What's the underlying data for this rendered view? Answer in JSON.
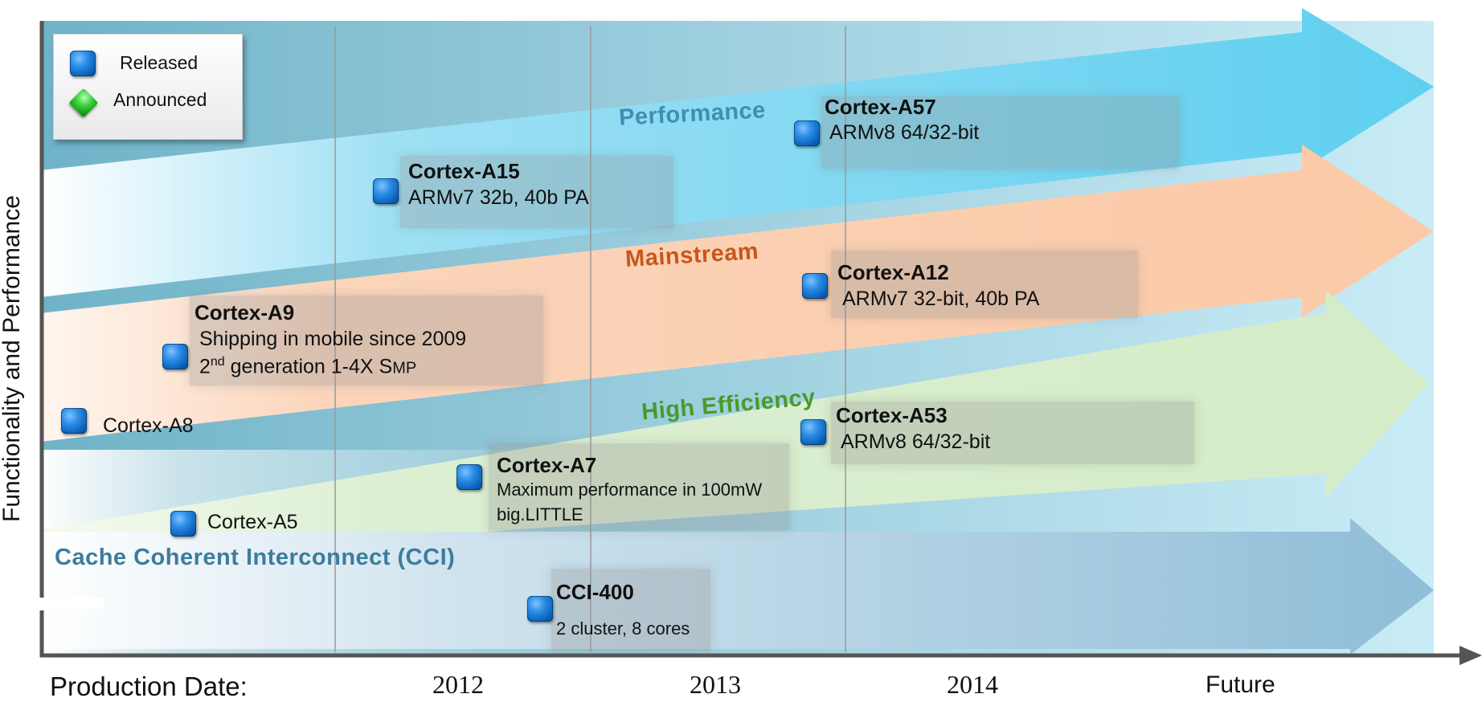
{
  "legend": {
    "released_label": "Released",
    "announced_label": "Announced"
  },
  "axis": {
    "y_title": "Functionality and Performance",
    "x_title": "Production Date:",
    "years": [
      "2012",
      "2013",
      "2014",
      "Future"
    ]
  },
  "bands": {
    "performance": "Performance",
    "mainstream": "Mainstream",
    "high_efficiency": "High Efficiency",
    "cci": "Cache Coherent Interconnect (CCI)"
  },
  "cores": {
    "a8": {
      "name": "Cortex-A8"
    },
    "a5": {
      "name": "Cortex-A5"
    },
    "a9": {
      "name": "Cortex-A9",
      "line1": "Shipping in mobile since 2009",
      "line2_prefix": "2",
      "line2_sup": "nd",
      "line2_rest": " generation 1-4X S",
      "line2_small": "MP"
    },
    "a15": {
      "name": "Cortex-A15",
      "desc": "ARMv7 32b, 40b PA"
    },
    "a7": {
      "name": "Cortex-A7",
      "line1": "Maximum performance in 100mW",
      "line2": "big.LITTLE"
    },
    "a57": {
      "name": "Cortex-A57",
      "desc": "ARMv8 64/32-bit"
    },
    "a12": {
      "name": "Cortex-A12",
      "desc": "ARMv7 32-bit, 40b PA"
    },
    "a53": {
      "name": "Cortex-A53",
      "desc": "ARMv8 64/32-bit"
    },
    "cci400": {
      "name": "CCI-400",
      "desc": "2 cluster, 8 cores"
    }
  },
  "colors": {
    "performance": "#3e8fb0",
    "mainstream": "#c8561c",
    "high_efficiency": "#4a9a2a",
    "cci": "#3d7c9c"
  }
}
